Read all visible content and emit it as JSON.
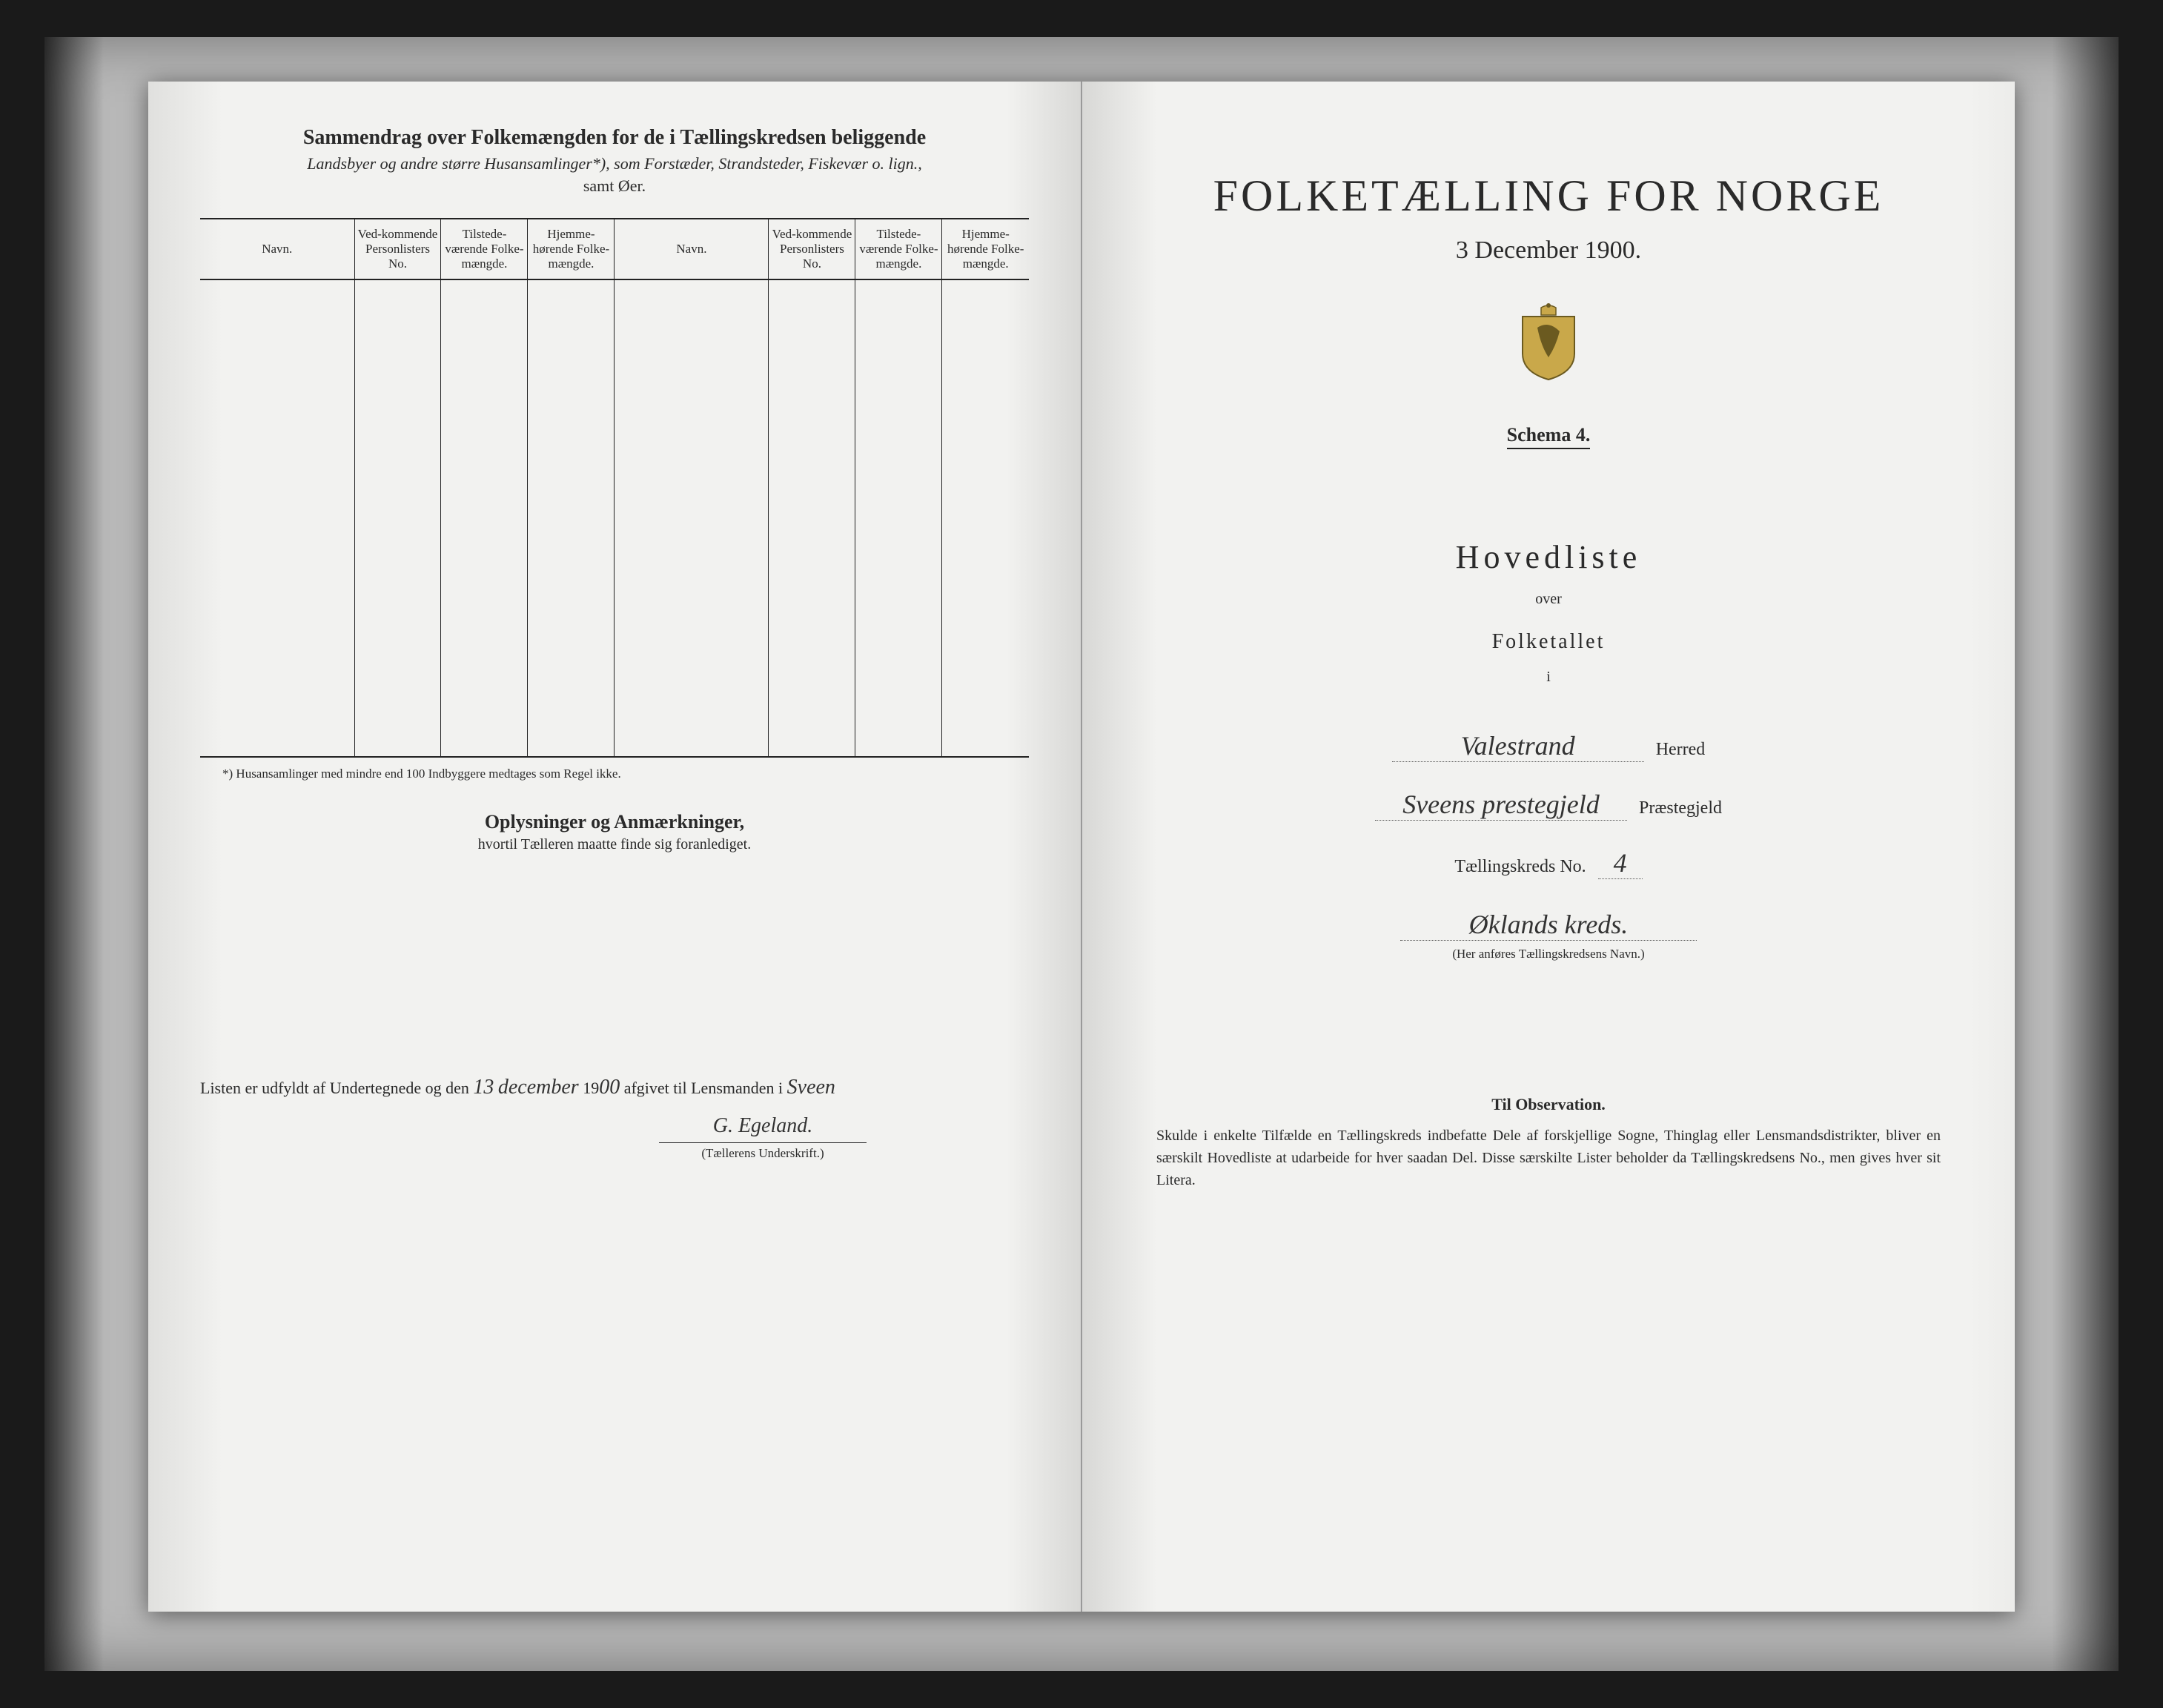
{
  "left": {
    "title": "Sammendrag over Folkemængden for de i Tællingskredsen beliggende",
    "subtitle": "Landsbyer og andre større Husansamlinger*), som Forstæder, Strandsteder, Fiskevær o. lign.,",
    "subtitle2": "samt Øer.",
    "columns": {
      "navn": "Navn.",
      "vedk": "Ved-kommende Personlisters No.",
      "tilstede": "Tilstede-værende Folke-mængde.",
      "hjemme": "Hjemme-hørende Folke-mængde."
    },
    "footnote": "*) Husansamlinger med mindre end 100 Indbyggere medtages som Regel ikke.",
    "oplys_title": "Oplysninger og Anmærkninger,",
    "oplys_sub": "hvortil Tælleren maatte finde sig foranlediget.",
    "listen_prefix": "Listen er udfyldt af Undertegnede og den",
    "listen_date_day": "13",
    "listen_date_month": "december",
    "listen_year_prefix": "19",
    "listen_year_suffix": "00",
    "listen_mid": "afgivet til Lensmanden i",
    "listen_place": "Sveen",
    "signature": "G. Egeland.",
    "sig_label": "(Tællerens Underskrift.)"
  },
  "right": {
    "main_title": "FOLKETÆLLING FOR NORGE",
    "date": "3 December 1900.",
    "schema": "Schema 4.",
    "hovedliste": "Hovedliste",
    "over": "over",
    "folketallet": "Folketallet",
    "i": "i",
    "herred_value": "Valestrand",
    "herred_label": "Herred",
    "praeste_value": "Sveens prestegjeld",
    "praeste_label": "Præstegjeld",
    "kreds_prefix": "Tællingskreds No.",
    "kreds_no": "4",
    "kreds_name": "Øklands kreds.",
    "kreds_note": "(Her anføres Tællingskredsens Navn.)",
    "obs_title": "Til Observation.",
    "obs_text": "Skulde i enkelte Tilfælde en Tællingskreds indbefatte Dele af forskjellige Sogne, Thinglag eller Lensmandsdistrikter, bliver en særskilt Hovedliste at udarbeide for hver saadan Del. Disse særskilte Lister beholder da Tællingskredsens No., men gives hver sit Litera."
  },
  "style": {
    "bg": "#1a1a1a",
    "frame_bg": "#b8b8b8",
    "page_bg": "#f2f2f0",
    "text": "#2a2a2a",
    "rule": "#222222",
    "handwrite": "#333333"
  },
  "table_rows": 14
}
